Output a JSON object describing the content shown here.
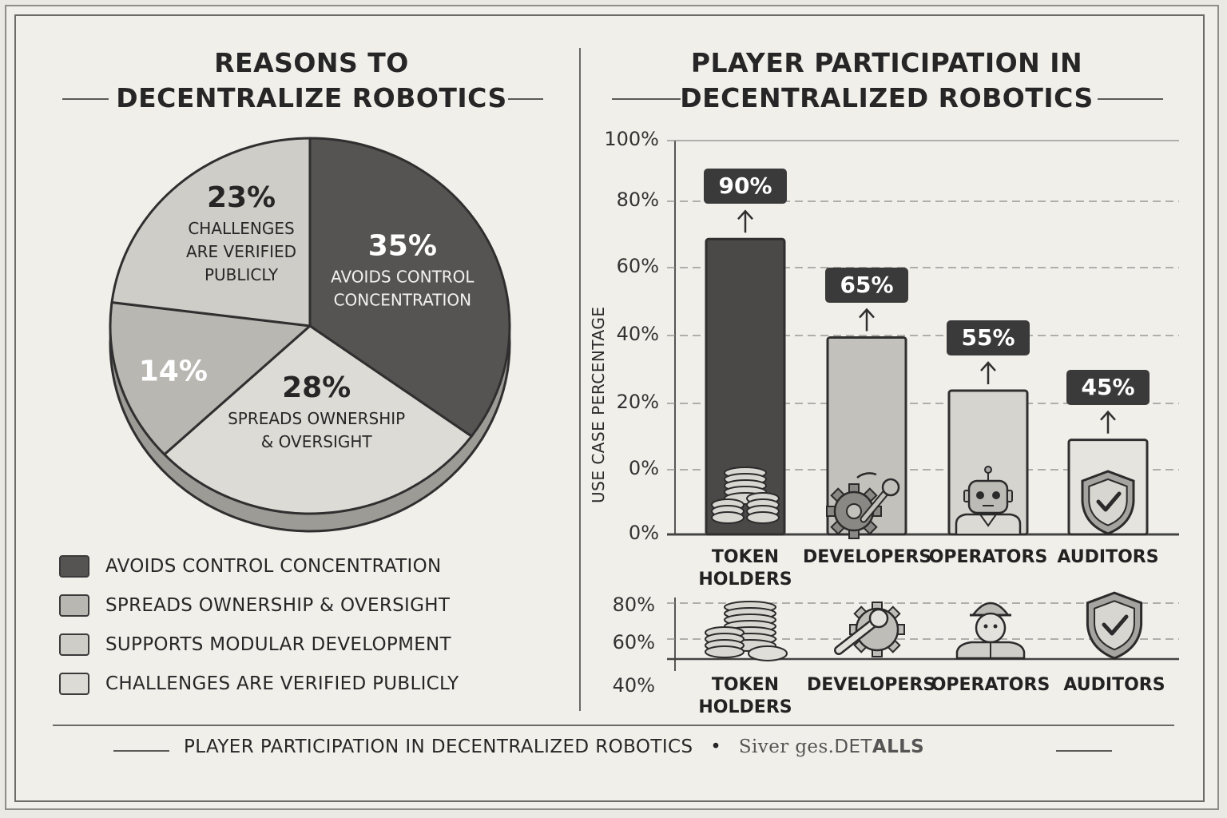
{
  "pie_title_line1": "REASONS TO",
  "pie_title_line2": "DECENTRALIZE ROBOTICS",
  "bar_title_line1": "PLAYER PARTICIPATION IN",
  "bar_title_line2": "DECENTRALIZED ROBOTICS",
  "chart_data": [
    {
      "type": "pie",
      "title": "REASONS TO DECENTRALIZE ROBOTICS",
      "slices": [
        {
          "label": "AVOIDS CONTROL CONCENTRATION",
          "value": 35,
          "value_label": "35%",
          "lines": [
            "AVOIDS CONTROL",
            "CONCENTRATION"
          ],
          "color": "#555452"
        },
        {
          "label": "SPREADS OWNERSHIP & OVERSIGHT",
          "value": 28,
          "value_label": "28%",
          "lines": [
            "SPREADS OWNERSHIP",
            "& OVERSIGHT"
          ],
          "color": "#dddbd6"
        },
        {
          "label": "SUPPORTS MODULAR DEVELOPMENT",
          "value": 14,
          "value_label": "14%",
          "lines": [],
          "color": "#b9b7b2"
        },
        {
          "label": "CHALLENGES ARE VERIFIED PUBLICLY",
          "value": 23,
          "value_label": "23%",
          "lines": [
            "CHALLENGES",
            "ARE VERIFIED",
            "PUBLICLY"
          ],
          "color": "#cfcdc8"
        }
      ],
      "legend": [
        {
          "label": "AVOIDS CONTROL CONCENTRATION",
          "color": "#555452"
        },
        {
          "label": "SPREADS OWNERSHIP & OVERSIGHT",
          "color": "#b9b7b2"
        },
        {
          "label": "SUPPORTS MODULAR DEVELOPMENT",
          "color": "#cfcdc8"
        },
        {
          "label": "CHALLENGES ARE VERIFIED PUBLICLY",
          "color": "#dddbd6"
        }
      ],
      "legend_position": "bottom"
    },
    {
      "type": "bar",
      "title": "PLAYER PARTICIPATION IN DECENTRALIZED ROBOTICS",
      "ylabel": "USE CASE PERCENTAGE",
      "ytick_labels": [
        "100%",
        "80%",
        "60%",
        "40%",
        "20%",
        "0%",
        "0%"
      ],
      "categories": [
        "TOKEN HOLDERS",
        "DEVELOPERS",
        "OPERATORS",
        "AUDITORS"
      ],
      "category_lines": [
        [
          "TOKEN",
          "HOLDERS"
        ],
        [
          "DEVELOPERS"
        ],
        [
          "OPERATORS"
        ],
        [
          "AUDITORS"
        ]
      ],
      "values": [
        90,
        65,
        55,
        45
      ],
      "value_labels": [
        "90%",
        "65%",
        "55%",
        "45%"
      ],
      "bar_fill_percent": [
        75,
        50,
        36.5,
        24
      ],
      "bar_colors": [
        "#4a4948",
        "#c3c1bc",
        "#d6d4cf",
        "#e6e4df"
      ],
      "icons": [
        "coins-icon",
        "gear-wrench-icon",
        "robot-icon",
        "shield-check-icon"
      ],
      "grid": true
    },
    {
      "type": "table",
      "ytick_labels": [
        "80%",
        "60%",
        "40%"
      ],
      "categories": [
        "TOKEN HOLDERS",
        "DEVELOPERS",
        "OPERATORS",
        "AUDITORS"
      ],
      "category_lines": [
        [
          "TOKEN",
          "HOLDERS"
        ],
        [
          "DEVELOPERS"
        ],
        [
          "OPERATORS"
        ],
        [
          "AUDITORS"
        ]
      ],
      "icons": [
        "coins-icon",
        "gear-wrench-icon",
        "worker-icon",
        "shield-check-icon"
      ]
    }
  ],
  "footer": {
    "text": "PLAYER PARTICIPATION IN DECENTRALIZED ROBOTICS",
    "separator": "•",
    "brand_plain": "Siver ges.",
    "brand_caps": "DET",
    "brand_bold": "ALLS"
  }
}
